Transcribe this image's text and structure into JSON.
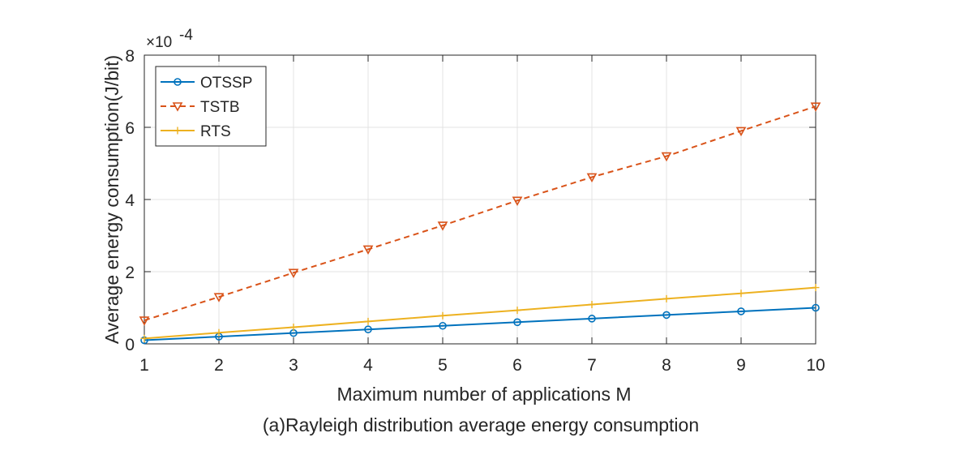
{
  "chart_data": {
    "type": "line",
    "title": "",
    "caption": "(a)Rayleigh distribution average energy consumption",
    "xlabel": "Maximum number of applications M",
    "ylabel": "Average energy consumption(J/bit)",
    "y_exponent_base": "×10",
    "y_exponent_power": "-4",
    "y_scale_factor": 0.0001,
    "xlim": [
      1,
      10
    ],
    "ylim": [
      0,
      8
    ],
    "x_ticks": [
      1,
      2,
      3,
      4,
      5,
      6,
      7,
      8,
      9,
      10
    ],
    "y_ticks": [
      0,
      2,
      4,
      6,
      8
    ],
    "grid": true,
    "legend_position": "top-left",
    "x": [
      1,
      2,
      3,
      4,
      5,
      6,
      7,
      8,
      9,
      10
    ],
    "series": [
      {
        "name": "OTSSP",
        "color": "#0072BD",
        "line_style": "solid",
        "marker": "circle",
        "values": [
          0.1,
          0.2,
          0.3,
          0.4,
          0.5,
          0.6,
          0.7,
          0.8,
          0.9,
          1.0
        ]
      },
      {
        "name": "TSTB",
        "color": "#D95319",
        "line_style": "dashed",
        "marker": "triangle-down",
        "values": [
          0.65,
          1.3,
          1.97,
          2.62,
          3.28,
          3.97,
          4.62,
          5.2,
          5.9,
          6.58
        ]
      },
      {
        "name": "RTS",
        "color": "#EDB120",
        "line_style": "solid",
        "marker": "plus",
        "values": [
          0.15,
          0.31,
          0.46,
          0.62,
          0.78,
          0.93,
          1.09,
          1.25,
          1.4,
          1.56
        ]
      }
    ]
  }
}
